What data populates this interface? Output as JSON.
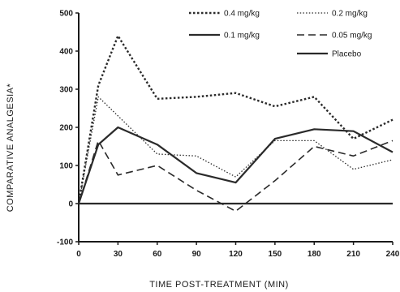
{
  "chart_data": {
    "type": "line",
    "title": "",
    "xlabel": "TIME POST-TREATMENT (MIN)",
    "ylabel": "COMPARATIVE ANALGESIA*",
    "xlim": [
      0,
      240
    ],
    "ylim": [
      -100,
      500
    ],
    "x": [
      0,
      15,
      30,
      60,
      90,
      120,
      150,
      180,
      210,
      240
    ],
    "xticks": [
      "0",
      "30",
      "60",
      "90",
      "120",
      "150",
      "180",
      "210",
      "240"
    ],
    "yticks": [
      "500",
      "400",
      "300",
      "200",
      "100",
      "0",
      "-100"
    ],
    "grid": false,
    "legend": "top-right",
    "series": [
      {
        "name": "0.4 mg/kg",
        "style": "dotted-heavy",
        "color": "#2a2a2a",
        "values": [
          0,
          310,
          440,
          275,
          280,
          290,
          255,
          280,
          170,
          220
        ]
      },
      {
        "name": "0.2 mg/kg",
        "style": "dotted-light",
        "color": "#2a2a2a",
        "values": [
          0,
          280,
          230,
          130,
          125,
          70,
          165,
          165,
          90,
          115
        ]
      },
      {
        "name": "0.1 mg/kg",
        "style": "solid",
        "color": "#2a2a2a",
        "values": [
          0,
          155,
          200,
          155,
          80,
          55,
          170,
          195,
          190,
          135
        ]
      },
      {
        "name": "0.05 mg/kg",
        "style": "long-dash",
        "color": "#2a2a2a",
        "values": [
          0,
          165,
          75,
          100,
          35,
          -20,
          60,
          150,
          125,
          165
        ]
      },
      {
        "name": "Placebo",
        "style": "solid-flat",
        "color": "#2a2a2a",
        "values": [
          0,
          0,
          0,
          0,
          0,
          0,
          0,
          0,
          0,
          0
        ]
      }
    ]
  }
}
